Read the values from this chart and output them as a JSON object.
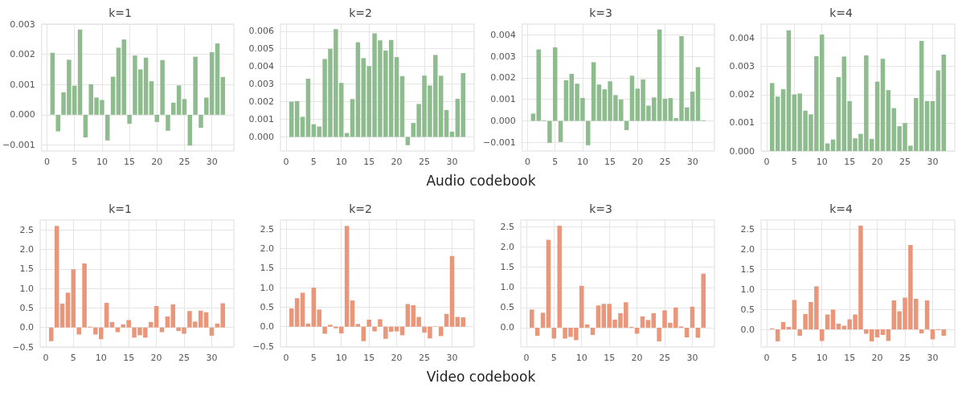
{
  "chart_data": [
    {
      "type": "bar",
      "title": "k=1",
      "color": "#8fbc8f",
      "grid": true,
      "xlim": [
        -1,
        34
      ],
      "xticks": [
        0,
        5,
        10,
        15,
        20,
        25,
        30
      ],
      "ylim": [
        -0.0012,
        0.003
      ],
      "yticks": [
        {
          "value": -0.001,
          "label": "−0.001"
        },
        {
          "value": 0,
          "label": "0.000"
        },
        {
          "value": 0.001,
          "label": "0.001"
        },
        {
          "value": 0.002,
          "label": "0.002"
        },
        {
          "value": 0.003,
          "label": "0.003"
        }
      ],
      "annotations": [
        "Audio codebook"
      ],
      "x": [
        1,
        2,
        3,
        4,
        5,
        6,
        7,
        8,
        9,
        10,
        11,
        12,
        13,
        14,
        15,
        16,
        17,
        18,
        19,
        20,
        21,
        22,
        23,
        24,
        25,
        26,
        27,
        28,
        29,
        30,
        31,
        32
      ],
      "values": [
        0.00205,
        -0.00055,
        0.00074,
        0.00182,
        0.00096,
        0.00282,
        -0.00075,
        0.00101,
        0.00057,
        0.00049,
        -0.00085,
        0.00126,
        0.00222,
        0.00249,
        -0.0003,
        0.00196,
        0.0015,
        0.00189,
        0.00111,
        -0.00024,
        0.00181,
        -0.00053,
        0.0004,
        0.00097,
        0.00052,
        -0.00102,
        0.00192,
        -0.00043,
        0.00057,
        0.00207,
        0.00236,
        0.00125
      ]
    },
    {
      "type": "bar",
      "title": "k=2",
      "color": "#8fbc8f",
      "grid": true,
      "xlim": [
        -1,
        34
      ],
      "xticks": [
        0,
        5,
        10,
        15,
        20,
        25,
        30
      ],
      "ylim": [
        -0.0008,
        0.0064
      ],
      "yticks": [
        {
          "value": 0,
          "label": "0.000"
        },
        {
          "value": 0.001,
          "label": "0.001"
        },
        {
          "value": 0.002,
          "label": "0.002"
        },
        {
          "value": 0.003,
          "label": "0.003"
        },
        {
          "value": 0.004,
          "label": "0.004"
        },
        {
          "value": 0.005,
          "label": "0.005"
        },
        {
          "value": 0.006,
          "label": "0.006"
        }
      ],
      "x": [
        1,
        2,
        3,
        4,
        5,
        6,
        7,
        8,
        9,
        10,
        11,
        12,
        13,
        14,
        15,
        16,
        17,
        18,
        19,
        20,
        21,
        22,
        23,
        24,
        25,
        26,
        27,
        28,
        29,
        30,
        31,
        32
      ],
      "values": [
        0.002,
        0.00203,
        0.00114,
        0.0033,
        0.00072,
        0.00059,
        0.00442,
        0.005,
        0.00612,
        0.00306,
        0.00022,
        0.00215,
        0.00537,
        0.00447,
        0.00402,
        0.00588,
        0.00548,
        0.0049,
        0.0055,
        0.00453,
        0.00345,
        -0.00047,
        0.00079,
        0.00187,
        0.00348,
        0.00292,
        0.00465,
        0.00347,
        0.00152,
        0.0003,
        0.00216,
        0.00362
      ]
    },
    {
      "type": "bar",
      "title": "k=3",
      "color": "#8fbc8f",
      "grid": true,
      "xlim": [
        -1,
        34
      ],
      "xticks": [
        0,
        5,
        10,
        15,
        20,
        25,
        30
      ],
      "ylim": [
        -0.0014,
        0.0045
      ],
      "yticks": [
        {
          "value": -0.001,
          "label": "−0.001"
        },
        {
          "value": 0,
          "label": "0.000"
        },
        {
          "value": 0.001,
          "label": "0.001"
        },
        {
          "value": 0.002,
          "label": "0.002"
        },
        {
          "value": 0.003,
          "label": "0.003"
        },
        {
          "value": 0.004,
          "label": "0.004"
        }
      ],
      "x": [
        1,
        2,
        3,
        4,
        5,
        6,
        7,
        8,
        9,
        10,
        11,
        12,
        13,
        14,
        15,
        16,
        17,
        18,
        19,
        20,
        21,
        22,
        23,
        24,
        25,
        26,
        27,
        28,
        29,
        30,
        31,
        32
      ],
      "values": [
        0.00034,
        0.00332,
        3e-05,
        -0.00102,
        0.00342,
        -0.00098,
        0.00189,
        0.00219,
        0.00173,
        0.00107,
        -0.00113,
        0.00273,
        0.00169,
        0.00147,
        0.00184,
        0.0012,
        0.00099,
        -0.00043,
        0.0021,
        0.0015,
        0.00193,
        0.00071,
        0.00109,
        0.00425,
        0.00103,
        0.00106,
        0.00013,
        0.00394,
        0.00063,
        0.00136,
        0.0025,
        3e-05
      ]
    },
    {
      "type": "bar",
      "title": "k=4",
      "color": "#8fbc8f",
      "grid": true,
      "xlim": [
        -1,
        34
      ],
      "xticks": [
        0,
        5,
        10,
        15,
        20,
        25,
        30
      ],
      "ylim": [
        0,
        0.0045
      ],
      "yticks": [
        {
          "value": 0,
          "label": "0.000"
        },
        {
          "value": 0.001,
          "label": "0.001"
        },
        {
          "value": 0.002,
          "label": "0.002"
        },
        {
          "value": 0.003,
          "label": "0.003"
        },
        {
          "value": 0.004,
          "label": "0.004"
        }
      ],
      "x": [
        1,
        2,
        3,
        4,
        5,
        6,
        7,
        8,
        9,
        10,
        11,
        12,
        13,
        14,
        15,
        16,
        17,
        18,
        19,
        20,
        21,
        22,
        23,
        24,
        25,
        26,
        27,
        28,
        29,
        30,
        31,
        32
      ],
      "values": [
        0.00241,
        0.00193,
        0.00219,
        0.00428,
        0.00201,
        0.00204,
        0.00143,
        0.0013,
        0.00336,
        0.00413,
        0.00027,
        0.00041,
        0.00262,
        0.00335,
        0.00177,
        0.00045,
        0.00061,
        0.00339,
        0.00043,
        0.00246,
        0.00327,
        0.00216,
        0.00152,
        0.00088,
        0.00099,
        0.00019,
        0.00188,
        0.0039,
        0.00177,
        0.00177,
        0.00286,
        0.00342
      ]
    },
    {
      "type": "bar",
      "title": "k=1",
      "color": "#e9967a",
      "grid": true,
      "xlim": [
        -1,
        34
      ],
      "xticks": [
        0,
        5,
        10,
        15,
        20,
        25,
        30
      ],
      "ylim": [
        -0.5,
        2.75
      ],
      "yticks": [
        {
          "value": -0.5,
          "label": "−0.5"
        },
        {
          "value": 0,
          "label": "0.0"
        },
        0.5,
        {
          "value": 1,
          "label": "1.0"
        },
        1.5,
        {
          "value": 2,
          "label": "2.0"
        },
        2.5
      ],
      "annotations": [
        "Video codebook"
      ],
      "x": [
        1,
        2,
        3,
        4,
        5,
        6,
        7,
        8,
        9,
        10,
        11,
        12,
        13,
        14,
        15,
        16,
        17,
        18,
        19,
        20,
        21,
        22,
        23,
        24,
        25,
        26,
        27,
        28,
        29,
        30,
        31,
        32
      ],
      "values": [
        -0.35,
        2.6,
        0.61,
        0.89,
        1.49,
        -0.18,
        1.64,
        0.02,
        -0.18,
        -0.3,
        0.63,
        0.14,
        -0.12,
        0.08,
        0.19,
        -0.26,
        -0.2,
        -0.26,
        0.14,
        0.55,
        -0.12,
        0.28,
        0.59,
        -0.09,
        -0.16,
        0.42,
        0.15,
        0.43,
        0.39,
        -0.21,
        0.1,
        0.62
      ]
    },
    {
      "type": "bar",
      "title": "k=2",
      "color": "#e9967a",
      "grid": true,
      "xlim": [
        -1,
        34
      ],
      "xticks": [
        0,
        5,
        10,
        15,
        20,
        25,
        30
      ],
      "ylim": [
        -0.52,
        2.73
      ],
      "yticks": [
        {
          "value": -0.5,
          "label": "−0.5"
        },
        {
          "value": 0,
          "label": "0.0"
        },
        0.5,
        {
          "value": 1,
          "label": "1.0"
        },
        1.5,
        {
          "value": 2,
          "label": "2.0"
        },
        2.5
      ],
      "x": [
        1,
        2,
        3,
        4,
        5,
        6,
        7,
        8,
        9,
        10,
        11,
        12,
        13,
        14,
        15,
        16,
        17,
        18,
        19,
        20,
        21,
        22,
        23,
        24,
        25,
        26,
        27,
        28,
        29,
        30,
        31,
        32
      ],
      "values": [
        0.47,
        0.73,
        0.87,
        0.08,
        1.0,
        0.44,
        -0.18,
        0.05,
        -0.04,
        -0.17,
        2.58,
        0.67,
        0.07,
        -0.37,
        0.18,
        -0.12,
        0.19,
        -0.31,
        -0.13,
        -0.12,
        -0.22,
        0.58,
        0.55,
        0.25,
        -0.15,
        -0.3,
        0.01,
        -0.24,
        0.33,
        1.81,
        0.25,
        0.24
      ]
    },
    {
      "type": "bar",
      "title": "k=3",
      "color": "#e9967a",
      "grid": true,
      "xlim": [
        -1,
        34
      ],
      "xticks": [
        0,
        5,
        10,
        15,
        20,
        25,
        30
      ],
      "ylim": [
        -0.48,
        2.67
      ],
      "yticks": [
        {
          "value": 0,
          "label": "0.0"
        },
        0.5,
        {
          "value": 1,
          "label": "1.0"
        },
        1.5,
        {
          "value": 2,
          "label": "2.0"
        },
        2.5
      ],
      "x": [
        1,
        2,
        3,
        4,
        5,
        6,
        7,
        8,
        9,
        10,
        11,
        12,
        13,
        14,
        15,
        16,
        17,
        18,
        19,
        20,
        21,
        22,
        23,
        24,
        25,
        26,
        27,
        28,
        29,
        30,
        31,
        32
      ],
      "values": [
        0.45,
        -0.2,
        0.37,
        2.18,
        -0.27,
        2.53,
        -0.27,
        -0.23,
        -0.31,
        1.04,
        0.08,
        -0.18,
        0.55,
        0.59,
        0.59,
        0.2,
        0.36,
        0.63,
        0.02,
        -0.15,
        0.28,
        0.19,
        0.36,
        -0.34,
        0.43,
        0.12,
        0.5,
        0.03,
        -0.24,
        0.52,
        -0.25,
        1.34
      ]
    },
    {
      "type": "bar",
      "title": "k=4",
      "color": "#e9967a",
      "grid": true,
      "xlim": [
        -1,
        34
      ],
      "xticks": [
        0,
        5,
        10,
        15,
        20,
        25,
        30
      ],
      "ylim": [
        -0.44,
        2.72
      ],
      "yticks": [
        {
          "value": 0,
          "label": "0.0"
        },
        0.5,
        {
          "value": 1,
          "label": "1.0"
        },
        1.5,
        {
          "value": 2,
          "label": "2.0"
        },
        2.5
      ],
      "x": [
        1,
        2,
        3,
        4,
        5,
        6,
        7,
        8,
        9,
        10,
        11,
        12,
        13,
        14,
        15,
        16,
        17,
        18,
        19,
        20,
        21,
        22,
        23,
        24,
        25,
        26,
        27,
        28,
        29,
        30,
        31,
        32
      ],
      "values": [
        0.02,
        -0.3,
        0.18,
        0.06,
        0.73,
        -0.16,
        0.38,
        0.68,
        1.07,
        -0.29,
        0.37,
        0.49,
        0.14,
        0.09,
        0.25,
        0.37,
        2.58,
        -0.11,
        -0.3,
        -0.2,
        -0.14,
        -0.29,
        0.72,
        0.45,
        0.79,
        2.1,
        0.76,
        -0.1,
        0.72,
        -0.25,
        -0.02,
        -0.16
      ]
    }
  ]
}
